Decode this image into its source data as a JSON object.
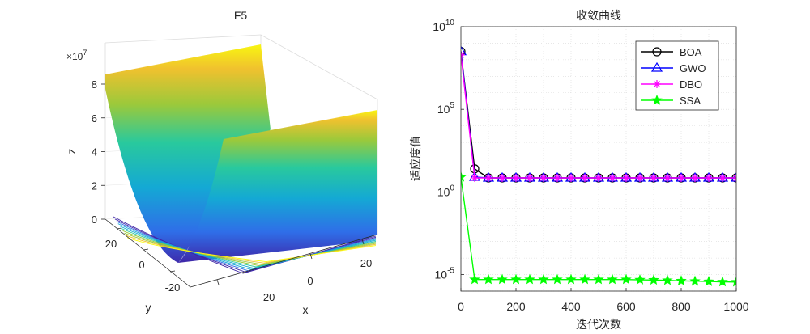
{
  "chart_data": [
    {
      "type": "surface",
      "title": "F5",
      "xlabel": "x",
      "ylabel": "y",
      "zlabel": "z",
      "z_exponent_label": "×10",
      "z_exponent_power": "7",
      "x_ticks": [
        "-20",
        "0",
        "20"
      ],
      "y_ticks": [
        "-20",
        "0",
        "20"
      ],
      "z_ticks": [
        "0",
        "2",
        "4",
        "6",
        "8"
      ],
      "xlim": [
        -30,
        30
      ],
      "ylim": [
        -30,
        30
      ],
      "zlim": [
        0,
        90000000
      ],
      "z_at_edges": 80000000,
      "colormap": [
        "#3e26a8",
        "#2f6ee8",
        "#14a9d4",
        "#29c99d",
        "#9bc93b",
        "#f0c12e",
        "#f9fb0e"
      ],
      "contours": true,
      "grid": true
    },
    {
      "type": "line",
      "title": "收敛曲线",
      "xlabel": "迭代次数",
      "ylabel": "适应度值",
      "xlim": [
        0,
        1000
      ],
      "ylog": true,
      "ylim_exp": [
        -6,
        10
      ],
      "x_ticks": [
        "0",
        "200",
        "400",
        "600",
        "800",
        "1000"
      ],
      "y_ticks": [
        {
          "base": "10",
          "exp": "10",
          "value_exp": 10
        },
        {
          "base": "10",
          "exp": "5",
          "value_exp": 5
        },
        {
          "base": "10",
          "exp": "0",
          "value_exp": 0
        },
        {
          "base": "10",
          "exp": "-5",
          "value_exp": -5
        }
      ],
      "grid": true,
      "legend_position": "top-right",
      "series": [
        {
          "name": "BOA",
          "color": "#000000",
          "marker": "circle",
          "x": [
            0,
            50,
            100,
            150,
            200,
            250,
            300,
            350,
            400,
            450,
            500,
            550,
            600,
            650,
            700,
            750,
            800,
            850,
            900,
            950,
            1000
          ],
          "y_exp": [
            8.5,
            1.4,
            0.85,
            0.85,
            0.85,
            0.85,
            0.85,
            0.85,
            0.85,
            0.85,
            0.85,
            0.85,
            0.85,
            0.85,
            0.85,
            0.85,
            0.85,
            0.85,
            0.85,
            0.85,
            0.85
          ]
        },
        {
          "name": "GWO",
          "color": "#0000ff",
          "marker": "triangle",
          "x": [
            0,
            50,
            100,
            150,
            200,
            250,
            300,
            350,
            400,
            450,
            500,
            550,
            600,
            650,
            700,
            750,
            800,
            850,
            900,
            950,
            1000
          ],
          "y_exp": [
            8.5,
            0.9,
            0.85,
            0.85,
            0.85,
            0.85,
            0.85,
            0.85,
            0.85,
            0.85,
            0.85,
            0.85,
            0.85,
            0.85,
            0.85,
            0.85,
            0.85,
            0.85,
            0.85,
            0.85,
            0.85
          ]
        },
        {
          "name": "DBO",
          "color": "#ff00ff",
          "marker": "asterisk",
          "x": [
            0,
            50,
            100,
            150,
            200,
            250,
            300,
            350,
            400,
            450,
            500,
            550,
            600,
            650,
            700,
            750,
            800,
            850,
            900,
            950,
            1000
          ],
          "y_exp": [
            8.3,
            0.85,
            0.85,
            0.85,
            0.85,
            0.85,
            0.85,
            0.85,
            0.85,
            0.85,
            0.85,
            0.85,
            0.85,
            0.85,
            0.85,
            0.85,
            0.85,
            0.85,
            0.85,
            0.85,
            0.85
          ]
        },
        {
          "name": "SSA",
          "color": "#00ff00",
          "marker": "star",
          "x": [
            0,
            50,
            100,
            150,
            200,
            250,
            300,
            350,
            400,
            450,
            500,
            550,
            600,
            650,
            700,
            750,
            800,
            850,
            900,
            950,
            1000
          ],
          "y_exp": [
            0.9,
            -5.3,
            -5.3,
            -5.3,
            -5.3,
            -5.3,
            -5.3,
            -5.3,
            -5.3,
            -5.3,
            -5.3,
            -5.3,
            -5.3,
            -5.32,
            -5.33,
            -5.35,
            -5.38,
            -5.4,
            -5.42,
            -5.44,
            -5.45
          ]
        }
      ]
    }
  ]
}
